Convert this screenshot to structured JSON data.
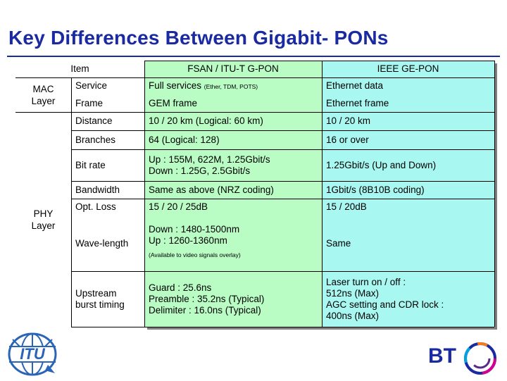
{
  "title": "Key Differences Between Gigabit- PONs",
  "table": {
    "headers": {
      "item": "Item",
      "gpon": "FSAN / ITU-T G-PON",
      "gepon": "IEEE GE-PON"
    },
    "layers": {
      "mac": "MAC Layer",
      "phy": "PHY Layer"
    },
    "rows": [
      {
        "item": "Service",
        "gpon": "Full services",
        "gpon_note": "(Ether, TDM, POTS)",
        "gepon": "Ethernet data"
      },
      {
        "item": "Frame",
        "gpon": "GEM frame",
        "gepon": "Ethernet frame"
      },
      {
        "item": "Distance",
        "gpon": "10 / 20 km (Logical: 60 km)",
        "gepon": "10 / 20 km"
      },
      {
        "item": "Branches",
        "gpon": "64 (Logical: 128)",
        "gepon": "16 or over"
      },
      {
        "item": "Bit rate",
        "gpon_lines": [
          "Up : 155M, 622M, 1.25Gbit/s",
          "Down : 1.25G, 2.5Gbit/s"
        ],
        "gepon": "1.25Gbit/s (Up and Down)"
      },
      {
        "item": "Bandwidth",
        "gpon": "Same as above (NRZ coding)",
        "gepon": "1Gbit/s (8B10B coding)"
      },
      {
        "item": "Opt. Loss",
        "gpon": "15 / 20 / 25dB",
        "gepon": "15 / 20dB"
      },
      {
        "item": "Wave-length",
        "gpon_lines": [
          "Down : 1480-1500nm",
          "Up : 1260-1360nm"
        ],
        "gpon_note": "(Available to video signals overlay)",
        "gepon": "Same"
      },
      {
        "item_lines": [
          "Upstream",
          "burst timing"
        ],
        "gpon_lines": [
          "Guard : 25.6ns",
          "Preamble : 35.2ns (Typical)",
          "Delimiter : 16.0ns (Typical)"
        ],
        "gepon_lines": [
          "Laser turn on / off :",
          "512ns (Max)",
          "AGC setting and CDR lock :",
          "400ns (Max)"
        ]
      }
    ]
  },
  "footer": {
    "left_logo": "ITU",
    "right_logo": "BT"
  },
  "colors": {
    "title": "#1a2aa0",
    "gpon_column": "#b9fcc4",
    "gepon_column": "#a9f7f1",
    "bt_blue": "#1a2aa0"
  }
}
